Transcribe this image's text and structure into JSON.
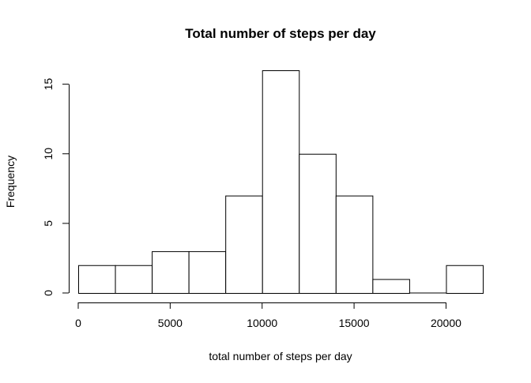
{
  "chart_data": {
    "type": "bar",
    "title": "Total number of steps per day",
    "xlabel": "total number of steps per day",
    "ylabel": "Frequency",
    "bin_edges": [
      0,
      2000,
      4000,
      6000,
      8000,
      10000,
      12000,
      14000,
      16000,
      18000,
      20000,
      22000
    ],
    "values": [
      2,
      2,
      3,
      3,
      7,
      16,
      10,
      7,
      1,
      0,
      2
    ],
    "xlim": [
      0,
      22000
    ],
    "ylim": [
      0,
      16
    ],
    "x_ticks": [
      0,
      5000,
      10000,
      15000,
      20000
    ],
    "x_tick_labels": [
      "0",
      "5000",
      "10000",
      "15000",
      "20000"
    ],
    "y_ticks": [
      0,
      5,
      10,
      15
    ],
    "y_tick_labels": [
      "0",
      "5",
      "10",
      "15"
    ],
    "grid": false,
    "legend": "none",
    "bar_fill": "#ffffff",
    "bar_stroke": "#000000"
  }
}
